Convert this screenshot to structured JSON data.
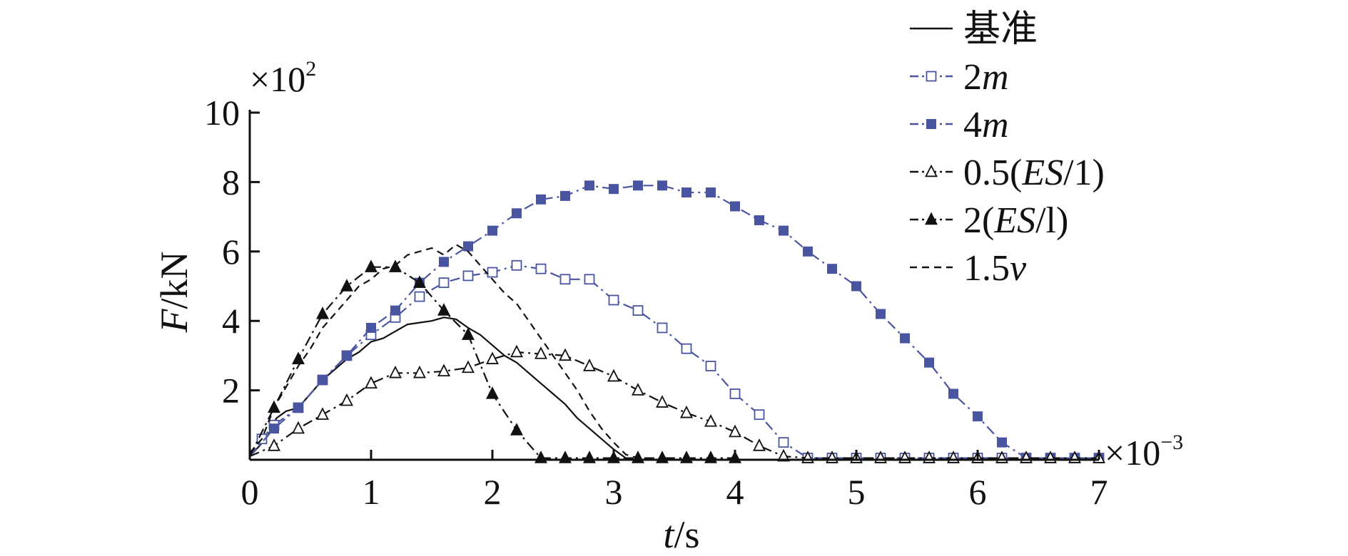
{
  "chart_data": {
    "type": "line",
    "xlabel": {
      "italic": "t",
      "rest": "/s"
    },
    "ylabel": {
      "italic": "F",
      "rest": "/kN"
    },
    "x_multiplier": {
      "base": "×10",
      "exp": "−3"
    },
    "y_multiplier": {
      "base": "×10",
      "exp": "2"
    },
    "xlim": [
      0,
      7
    ],
    "ylim": [
      0,
      10
    ],
    "x_ticks": [
      "0",
      "1",
      "2",
      "3",
      "4",
      "5",
      "6",
      "7"
    ],
    "y_ticks": [
      "2",
      "4",
      "6",
      "8",
      "10"
    ],
    "grid": false,
    "legend_position": "top-right",
    "series": [
      {
        "name": "基准",
        "legend_parts": [
          {
            "t": "基准",
            "i": false
          }
        ],
        "style": "solid",
        "marker": "none",
        "color": "#111111",
        "x": [
          0,
          0.08,
          0.15,
          0.22,
          0.3,
          0.4,
          0.5,
          0.6,
          0.7,
          0.8,
          0.9,
          1.0,
          1.1,
          1.2,
          1.3,
          1.4,
          1.5,
          1.6,
          1.7,
          1.8,
          1.9,
          2.0,
          2.1,
          2.2,
          2.3,
          2.4,
          2.5,
          2.6,
          2.7,
          2.8,
          2.9,
          3.0,
          3.1,
          3.15
        ],
        "y": [
          0.1,
          0.4,
          0.7,
          1.2,
          1.4,
          1.5,
          1.9,
          2.3,
          2.6,
          2.9,
          3.1,
          3.4,
          3.5,
          3.7,
          3.9,
          3.95,
          4.0,
          4.1,
          4.05,
          3.8,
          3.6,
          3.3,
          3.0,
          2.8,
          2.5,
          2.2,
          1.9,
          1.6,
          1.2,
          0.9,
          0.6,
          0.3,
          0.05,
          0.0
        ]
      },
      {
        "name": "2m",
        "legend_parts": [
          {
            "t": "2",
            "i": false
          },
          {
            "t": "m",
            "i": true
          }
        ],
        "style": "dashdot",
        "marker": "open-square",
        "color": "#4a55a2",
        "x": [
          0,
          0.1,
          0.2,
          0.4,
          0.6,
          0.8,
          1.0,
          1.2,
          1.4,
          1.6,
          1.8,
          2.0,
          2.2,
          2.4,
          2.6,
          2.8,
          3.0,
          3.2,
          3.4,
          3.6,
          3.8,
          4.0,
          4.2,
          4.4,
          4.6,
          4.8,
          5.0,
          5.2,
          5.4,
          5.6,
          5.8,
          6.0,
          6.2,
          6.4,
          6.6,
          6.8,
          7.0
        ],
        "y": [
          0.1,
          0.6,
          1.0,
          1.5,
          2.3,
          3.0,
          3.6,
          4.1,
          4.7,
          5.1,
          5.3,
          5.4,
          5.6,
          5.5,
          5.2,
          5.2,
          4.6,
          4.3,
          3.8,
          3.2,
          2.7,
          1.9,
          1.3,
          0.5,
          0.05,
          0.05,
          0.05,
          0.05,
          0.05,
          0.05,
          0.05,
          0.05,
          0.05,
          0.05,
          0.05,
          0.05,
          0.05
        ]
      },
      {
        "name": "4m",
        "legend_parts": [
          {
            "t": "4",
            "i": false
          },
          {
            "t": "m",
            "i": true
          }
        ],
        "style": "dashdot",
        "marker": "filled-square",
        "color": "#4a55a2",
        "x": [
          0,
          0.2,
          0.4,
          0.6,
          0.8,
          1.0,
          1.2,
          1.4,
          1.6,
          1.8,
          2.0,
          2.2,
          2.4,
          2.6,
          2.8,
          3.0,
          3.2,
          3.4,
          3.6,
          3.8,
          4.0,
          4.2,
          4.4,
          4.6,
          4.8,
          5.0,
          5.2,
          5.4,
          5.6,
          5.8,
          6.0,
          6.2,
          6.4,
          6.6,
          6.8,
          7.0
        ],
        "y": [
          0.1,
          0.9,
          1.5,
          2.3,
          3.0,
          3.8,
          4.3,
          5.1,
          5.7,
          6.15,
          6.6,
          7.1,
          7.5,
          7.6,
          7.9,
          7.8,
          7.9,
          7.9,
          7.7,
          7.7,
          7.3,
          6.9,
          6.6,
          6.0,
          5.5,
          5.0,
          4.2,
          3.5,
          2.8,
          1.9,
          1.25,
          0.5,
          0.05,
          0.05,
          0.05,
          0.05
        ]
      },
      {
        "name": "0.5(ES/1)",
        "legend_parts": [
          {
            "t": "0.5(",
            "i": false
          },
          {
            "t": "ES",
            "i": true
          },
          {
            "t": "/1)",
            "i": false
          }
        ],
        "style": "dashdot",
        "marker": "open-triangle",
        "color": "#111111",
        "x": [
          0,
          0.2,
          0.4,
          0.6,
          0.8,
          1.0,
          1.2,
          1.4,
          1.6,
          1.8,
          2.0,
          2.2,
          2.4,
          2.6,
          2.8,
          3.0,
          3.2,
          3.4,
          3.6,
          3.8,
          4.0,
          4.2,
          4.4,
          4.6,
          4.8,
          5.0,
          5.2,
          5.4,
          5.6,
          5.8,
          6.0,
          6.2,
          6.4,
          6.6,
          6.8,
          7.0
        ],
        "y": [
          0.1,
          0.4,
          0.9,
          1.3,
          1.7,
          2.2,
          2.5,
          2.5,
          2.55,
          2.65,
          2.9,
          3.1,
          3.05,
          3.0,
          2.7,
          2.4,
          2.0,
          1.65,
          1.35,
          1.1,
          0.8,
          0.4,
          0.1,
          0.05,
          0.05,
          0.05,
          0.05,
          0.05,
          0.05,
          0.05,
          0.05,
          0.05,
          0.05,
          0.05,
          0.05,
          0.05
        ]
      },
      {
        "name": "2(ES/l)",
        "legend_parts": [
          {
            "t": "2(",
            "i": false
          },
          {
            "t": "ES",
            "i": true
          },
          {
            "t": "/l)",
            "i": false
          }
        ],
        "style": "dashdot",
        "marker": "filled-triangle",
        "color": "#111111",
        "x": [
          0,
          0.2,
          0.4,
          0.6,
          0.8,
          1.0,
          1.2,
          1.4,
          1.6,
          1.8,
          2.0,
          2.2,
          2.4,
          2.6,
          2.8,
          3.0,
          3.2,
          3.4,
          3.6,
          3.8,
          4.0
        ],
        "y": [
          0.1,
          1.5,
          2.9,
          4.2,
          5.0,
          5.55,
          5.55,
          5.1,
          4.3,
          3.6,
          1.9,
          0.85,
          0.05,
          0.05,
          0.05,
          0.05,
          0.05,
          0.05,
          0.05,
          0.05,
          0.05
        ]
      },
      {
        "name": "1.5v",
        "legend_parts": [
          {
            "t": "1.5",
            "i": false
          },
          {
            "t": "v",
            "i": true
          }
        ],
        "style": "dashed",
        "marker": "none",
        "color": "#111111",
        "x": [
          0,
          0.1,
          0.2,
          0.3,
          0.4,
          0.5,
          0.6,
          0.7,
          0.8,
          0.9,
          1.0,
          1.1,
          1.2,
          1.3,
          1.4,
          1.5,
          1.6,
          1.7,
          1.8,
          1.9,
          2.0,
          2.1,
          2.2,
          2.3,
          2.4,
          2.5,
          2.6,
          2.7,
          2.8,
          2.9,
          3.0,
          3.1,
          3.2
        ],
        "y": [
          0.2,
          0.6,
          1.5,
          2.1,
          2.7,
          3.2,
          3.8,
          4.2,
          4.6,
          5.0,
          5.2,
          5.5,
          5.6,
          5.9,
          6.0,
          6.1,
          5.9,
          6.2,
          6.0,
          5.6,
          5.2,
          4.8,
          4.5,
          4.0,
          3.5,
          3.0,
          2.5,
          2.0,
          1.4,
          0.9,
          0.5,
          0.15,
          0.05
        ]
      }
    ]
  }
}
